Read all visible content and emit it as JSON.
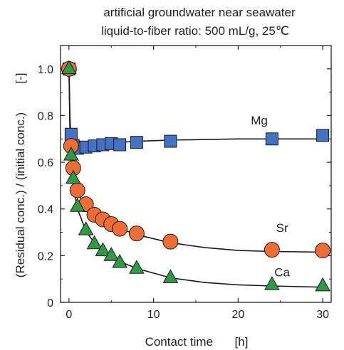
{
  "chart_data": {
    "type": "scatter",
    "title": "artificial groundwater near seawater",
    "subtitle": "liquid-to-fiber ratio: 500 mL/g, 25℃",
    "xlabel": "Contact time",
    "xlabel_unit": "[h]",
    "ylabel": "(Residual conc.) / (initial conc.)",
    "ylabel_unit": "[-]",
    "xlim": [
      -1,
      31
    ],
    "ylim": [
      0,
      1.1
    ],
    "x_ticks": [
      0,
      10,
      20,
      30
    ],
    "y_ticks": [
      0,
      0.2,
      0.4,
      0.6,
      0.8,
      1.0
    ],
    "x_tick_labels": [
      "0",
      "10",
      "20",
      "30"
    ],
    "y_tick_labels": [
      "0",
      "0.2",
      "0.4",
      "0.6",
      "0.8",
      "1.0"
    ],
    "grid": false,
    "series": [
      {
        "name": "Mg",
        "marker": "square",
        "color": "#4472c4",
        "x": [
          0,
          0.25,
          0.5,
          1,
          2,
          3,
          4,
          5,
          6,
          8,
          12,
          24,
          30
        ],
        "y": [
          1.0,
          0.72,
          0.67,
          0.66,
          0.665,
          0.67,
          0.675,
          0.68,
          0.675,
          0.685,
          0.69,
          0.7,
          0.715
        ],
        "curve_x": [
          0,
          0.1,
          0.25,
          0.5,
          1,
          2,
          4,
          8,
          12,
          20,
          30
        ],
        "curve_y": [
          1.0,
          0.8,
          0.7,
          0.665,
          0.662,
          0.668,
          0.68,
          0.69,
          0.695,
          0.7,
          0.7
        ]
      },
      {
        "name": "Sr",
        "marker": "circle",
        "color": "#ed6d35",
        "x": [
          0,
          0.25,
          0.5,
          1,
          2,
          3,
          4,
          5,
          6,
          8,
          12,
          24,
          30
        ],
        "y": [
          1.0,
          0.67,
          0.575,
          0.48,
          0.42,
          0.375,
          0.355,
          0.335,
          0.315,
          0.295,
          0.26,
          0.225,
          0.222
        ],
        "curve_x": [
          0,
          0.1,
          0.25,
          0.5,
          1,
          2,
          3,
          4,
          6,
          8,
          12,
          16,
          20,
          24,
          30
        ],
        "curve_y": [
          1.0,
          0.78,
          0.64,
          0.56,
          0.47,
          0.41,
          0.375,
          0.35,
          0.315,
          0.29,
          0.255,
          0.235,
          0.222,
          0.218,
          0.215
        ]
      },
      {
        "name": "Ca",
        "marker": "triangle",
        "color": "#2e9a45",
        "x": [
          0,
          0.25,
          0.5,
          1,
          2,
          3,
          4,
          5,
          6,
          8,
          12,
          24,
          30
        ],
        "y": [
          1.0,
          0.63,
          0.53,
          0.41,
          0.31,
          0.25,
          0.22,
          0.2,
          0.17,
          0.145,
          0.105,
          0.075,
          0.07
        ],
        "curve_x": [
          0,
          0.1,
          0.25,
          0.5,
          1,
          2,
          3,
          4,
          6,
          8,
          12,
          16,
          20,
          24,
          30
        ],
        "curve_y": [
          1.0,
          0.75,
          0.6,
          0.5,
          0.4,
          0.305,
          0.255,
          0.22,
          0.175,
          0.145,
          0.105,
          0.085,
          0.075,
          0.07,
          0.065
        ]
      }
    ]
  }
}
